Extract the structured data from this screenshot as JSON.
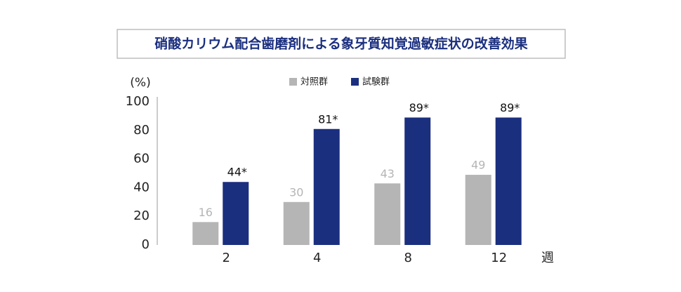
{
  "chart_data": {
    "type": "bar",
    "title": "硝酸カリウム配合歯磨剤による象牙質知覚過敏症状の改善効果",
    "y_label": "(%)",
    "x_label": "週",
    "categories": [
      "2",
      "4",
      "8",
      "12"
    ],
    "series": [
      {
        "name": "対照群",
        "color": "#b5b5b5",
        "values": [
          16,
          30,
          43,
          49
        ]
      },
      {
        "name": "試験群",
        "color": "#1b2f7f",
        "values": [
          44,
          81,
          89,
          89
        ],
        "value_labels": [
          "44*",
          "81*",
          "89*",
          "89*"
        ]
      }
    ],
    "ylim": [
      0,
      100
    ],
    "yticks": [
      0,
      20,
      40,
      60,
      80,
      100
    ],
    "grid": false
  }
}
